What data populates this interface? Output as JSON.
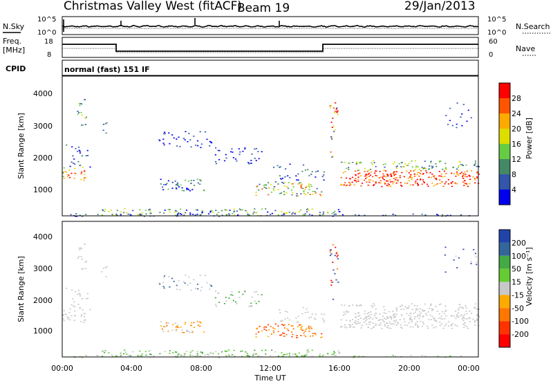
{
  "header": {
    "station": "Christmas Valley West (fitACF)",
    "beam": "Beam 19",
    "date": "29/Jan/2013"
  },
  "noise_panel": {
    "left_label": "N.Sky",
    "right_label": "N.Search",
    "left_ticks": [
      "10^5",
      "10^0"
    ],
    "right_ticks": [
      "10^5",
      "10^0"
    ]
  },
  "freq_panel": {
    "left_label_line1": "Freq.",
    "left_label_line2": "[MHz]",
    "right_label": "Nave",
    "left_ticks": [
      "18",
      "8"
    ],
    "right_ticks": [
      "60",
      "0"
    ]
  },
  "cpid": {
    "label": "CPID",
    "value": "normal (fast) 151 IF"
  },
  "chart_data": [
    {
      "type": "heatmap",
      "panel": "power",
      "ylabel": "Slant Range [km]",
      "ylim": [
        180,
        4500
      ],
      "yticks": [
        "4000",
        "3000",
        "2000",
        "1000"
      ],
      "colorbar_label": "Power [dB]",
      "colorbar_ticks": [
        "28",
        "24",
        "20",
        "16",
        "12",
        "8",
        "4"
      ],
      "colorbar_colors": [
        "#ff0000",
        "#ff5500",
        "#ffaa00",
        "#dddd00",
        "#66cc44",
        "#448866",
        "#3355aa",
        "#0000ee"
      ]
    },
    {
      "type": "heatmap",
      "panel": "velocity",
      "ylabel": "Slant Range [km]",
      "ylim": [
        180,
        4500
      ],
      "yticks": [
        "4000",
        "3000",
        "2000",
        "1000"
      ],
      "colorbar_label": "Velocity [m s⁻¹]",
      "colorbar_ticks": [
        "200",
        "100",
        "50",
        "15",
        "-15",
        "-50",
        "-100",
        "-200"
      ],
      "colorbar_colors": [
        "#2244aa",
        "#336699",
        "#44aa44",
        "#66cc33",
        "#c8c8c8",
        "#ffaa00",
        "#ff7700",
        "#ff3300",
        "#ff0000"
      ]
    }
  ],
  "xaxis": {
    "label": "Time UT",
    "ticks": [
      "00:00",
      "04:00",
      "08:00",
      "12:00",
      "16:00",
      "20:00",
      "00:00"
    ]
  }
}
